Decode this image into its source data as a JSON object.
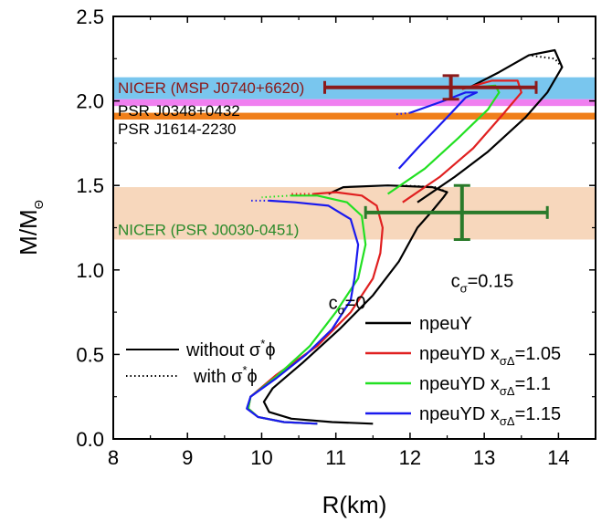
{
  "chart_data": {
    "type": "line",
    "xlabel": "R(km)",
    "ylabel_main": "M/M",
    "ylabel_sub": "Θ",
    "xlim": [
      8,
      14.5
    ],
    "ylim": [
      0,
      2.5
    ],
    "x_ticks": [
      "8",
      "9",
      "10",
      "11",
      "12",
      "13",
      "14"
    ],
    "y_ticks": [
      "0.0",
      "0.5",
      "1.0",
      "1.5",
      "2.0",
      "2.5"
    ],
    "bands": [
      {
        "label": "NICER (MSP J0740+6620)",
        "y_min": 2.01,
        "y_max": 2.14,
        "color": "#79c6ee",
        "label_color": "#8b1a1a"
      },
      {
        "label": "PSR J0348+0432",
        "y_min": 1.97,
        "y_max": 2.01,
        "color": "#f07ff0",
        "label_color": "#000000"
      },
      {
        "label": "PSR J1614-2230",
        "y_min": 1.89,
        "y_max": 1.93,
        "color": "#f07f1a",
        "label_color": "#000000"
      },
      {
        "label": "NICER (PSR J0030-0451)",
        "y_min": 1.18,
        "y_max": 1.49,
        "color": "#f7d7bc",
        "label_color": "#2a8a2a"
      }
    ],
    "error_bars": [
      {
        "x": 12.55,
        "y": 2.08,
        "x_err": [
          10.85,
          13.7
        ],
        "y_err": [
          2.01,
          2.15
        ],
        "color": "#8b1a1a"
      },
      {
        "x": 12.7,
        "y": 1.34,
        "x_err": [
          11.4,
          13.85
        ],
        "y_err": [
          1.18,
          1.5
        ],
        "color": "#2a7a2a"
      }
    ],
    "series": [
      {
        "name": "npeuY",
        "color": "#000000",
        "points": [
          [
            11.5,
            0.09
          ],
          [
            10.95,
            0.1
          ],
          [
            10.4,
            0.12
          ],
          [
            10.1,
            0.16
          ],
          [
            10.03,
            0.22
          ],
          [
            10.15,
            0.3
          ],
          [
            10.55,
            0.45
          ],
          [
            11.05,
            0.65
          ],
          [
            11.5,
            0.85
          ],
          [
            11.85,
            1.05
          ],
          [
            12.1,
            1.25
          ],
          [
            12.3,
            1.35
          ],
          [
            12.45,
            1.43
          ],
          [
            12.5,
            1.46
          ],
          [
            12.3,
            1.49
          ],
          [
            11.7,
            1.5
          ],
          [
            11.1,
            1.49
          ],
          [
            10.9,
            1.45
          ]
        ]
      },
      {
        "name": "npeuY",
        "color": "#000000",
        "points": [
          [
            12.1,
            1.4
          ],
          [
            12.6,
            1.55
          ],
          [
            13.05,
            1.7
          ],
          [
            13.55,
            1.9
          ],
          [
            13.85,
            2.05
          ],
          [
            14.05,
            2.2
          ],
          [
            13.95,
            2.3
          ],
          [
            13.6,
            2.27
          ],
          [
            13.2,
            2.17
          ],
          [
            12.8,
            2.08
          ]
        ]
      },
      {
        "name": "npeuYD x_σΔ=1.05",
        "color": "#e02020",
        "points": [
          [
            10.75,
            0.09
          ],
          [
            10.3,
            0.1
          ],
          [
            9.95,
            0.13
          ],
          [
            9.82,
            0.18
          ],
          [
            9.85,
            0.25
          ],
          [
            10.2,
            0.38
          ],
          [
            10.75,
            0.55
          ],
          [
            11.2,
            0.75
          ],
          [
            11.5,
            0.95
          ],
          [
            11.6,
            1.1
          ],
          [
            11.63,
            1.25
          ],
          [
            11.55,
            1.38
          ],
          [
            11.35,
            1.44
          ],
          [
            11.0,
            1.46
          ],
          [
            10.7,
            1.45
          ]
        ]
      },
      {
        "name": "npeuYD x_σΔ=1.05",
        "color": "#e02020",
        "points": [
          [
            11.9,
            1.4
          ],
          [
            12.4,
            1.55
          ],
          [
            12.85,
            1.72
          ],
          [
            13.25,
            1.92
          ],
          [
            13.5,
            2.05
          ],
          [
            13.45,
            2.12
          ],
          [
            13.1,
            2.12
          ],
          [
            12.7,
            2.07
          ]
        ]
      },
      {
        "name": "npeuYD x_σΔ=1.1",
        "color": "#22e022",
        "points": [
          [
            10.75,
            0.09
          ],
          [
            10.3,
            0.1
          ],
          [
            9.95,
            0.13
          ],
          [
            9.82,
            0.18
          ],
          [
            9.85,
            0.25
          ],
          [
            10.2,
            0.37
          ],
          [
            10.65,
            0.55
          ],
          [
            11.0,
            0.75
          ],
          [
            11.3,
            0.95
          ],
          [
            11.4,
            1.15
          ],
          [
            11.35,
            1.32
          ],
          [
            11.15,
            1.4
          ],
          [
            10.75,
            1.44
          ],
          [
            10.4,
            1.44
          ]
        ]
      },
      {
        "name": "npeuYD x_σΔ=1.1",
        "color": "#22e022",
        "points": [
          [
            11.7,
            1.45
          ],
          [
            12.2,
            1.6
          ],
          [
            12.65,
            1.78
          ],
          [
            13.05,
            1.95
          ],
          [
            13.2,
            2.05
          ],
          [
            13.15,
            2.09
          ],
          [
            12.85,
            2.08
          ]
        ]
      },
      {
        "name": "npeuYD x_σΔ=1.15",
        "color": "#1a1aee",
        "points": [
          [
            10.75,
            0.09
          ],
          [
            10.3,
            0.1
          ],
          [
            9.95,
            0.13
          ],
          [
            9.8,
            0.18
          ],
          [
            9.85,
            0.25
          ],
          [
            10.2,
            0.36
          ],
          [
            10.6,
            0.5
          ],
          [
            10.95,
            0.65
          ],
          [
            11.2,
            0.82
          ],
          [
            11.25,
            0.95
          ],
          [
            11.3,
            1.15
          ],
          [
            11.2,
            1.3
          ],
          [
            10.9,
            1.38
          ],
          [
            10.45,
            1.4
          ],
          [
            10.1,
            1.41
          ]
        ]
      },
      {
        "name": "npeuYD x_σΔ=1.15",
        "color": "#1a1aee",
        "points": [
          [
            11.85,
            1.6
          ],
          [
            12.1,
            1.72
          ],
          [
            12.45,
            1.88
          ],
          [
            12.75,
            2.02
          ],
          [
            12.9,
            2.05
          ],
          [
            12.75,
            2.05
          ],
          [
            12.45,
            2.0
          ],
          [
            12.0,
            1.93
          ]
        ]
      }
    ],
    "dotted_series": [
      {
        "color": "#000000",
        "points": [
          [
            12.5,
            1.46
          ],
          [
            12.35,
            1.49
          ],
          [
            11.9,
            1.5
          ]
        ]
      },
      {
        "color": "#000000",
        "points": [
          [
            14.05,
            2.2
          ],
          [
            13.95,
            2.25
          ],
          [
            13.6,
            2.27
          ]
        ]
      },
      {
        "color": "#e02020",
        "points": [
          [
            10.7,
            1.45
          ],
          [
            10.4,
            1.45
          ]
        ]
      },
      {
        "color": "#22e022",
        "points": [
          [
            10.4,
            1.44
          ],
          [
            10.0,
            1.43
          ]
        ]
      },
      {
        "color": "#1a1aee",
        "points": [
          [
            10.1,
            1.41
          ],
          [
            9.85,
            1.41
          ]
        ]
      },
      {
        "color": "#1a1aee",
        "points": [
          [
            12.0,
            1.93
          ],
          [
            11.8,
            1.92
          ]
        ]
      }
    ],
    "annotations": [
      {
        "text_main": "c",
        "text_sub": "σ",
        "text_rest": "=0",
        "x": 10.9,
        "y": 0.77
      },
      {
        "text_main": "c",
        "text_sub": "σ",
        "text_rest": "=0.15",
        "x": 12.55,
        "y": 0.9
      }
    ],
    "legend_left": [
      {
        "label": "without σ",
        "sup": "*",
        "suffix": "ϕ",
        "style": "solid"
      },
      {
        "label": "with σ",
        "sup": "*",
        "suffix": "ϕ",
        "style": "dotted"
      }
    ],
    "legend_right": [
      {
        "label": "npeuY",
        "color": "#000000",
        "sub": "",
        "suffix": ""
      },
      {
        "label": "npeuYD x",
        "color": "#e02020",
        "sub": "σΔ",
        "suffix": "=1.05"
      },
      {
        "label": "npeuYD x",
        "color": "#22e022",
        "sub": "σΔ",
        "suffix": "=1.1"
      },
      {
        "label": "npeuYD x",
        "color": "#1a1aee",
        "sub": "σΔ",
        "suffix": "=1.15"
      }
    ],
    "legend_placement": "bottom",
    "grid": false
  }
}
